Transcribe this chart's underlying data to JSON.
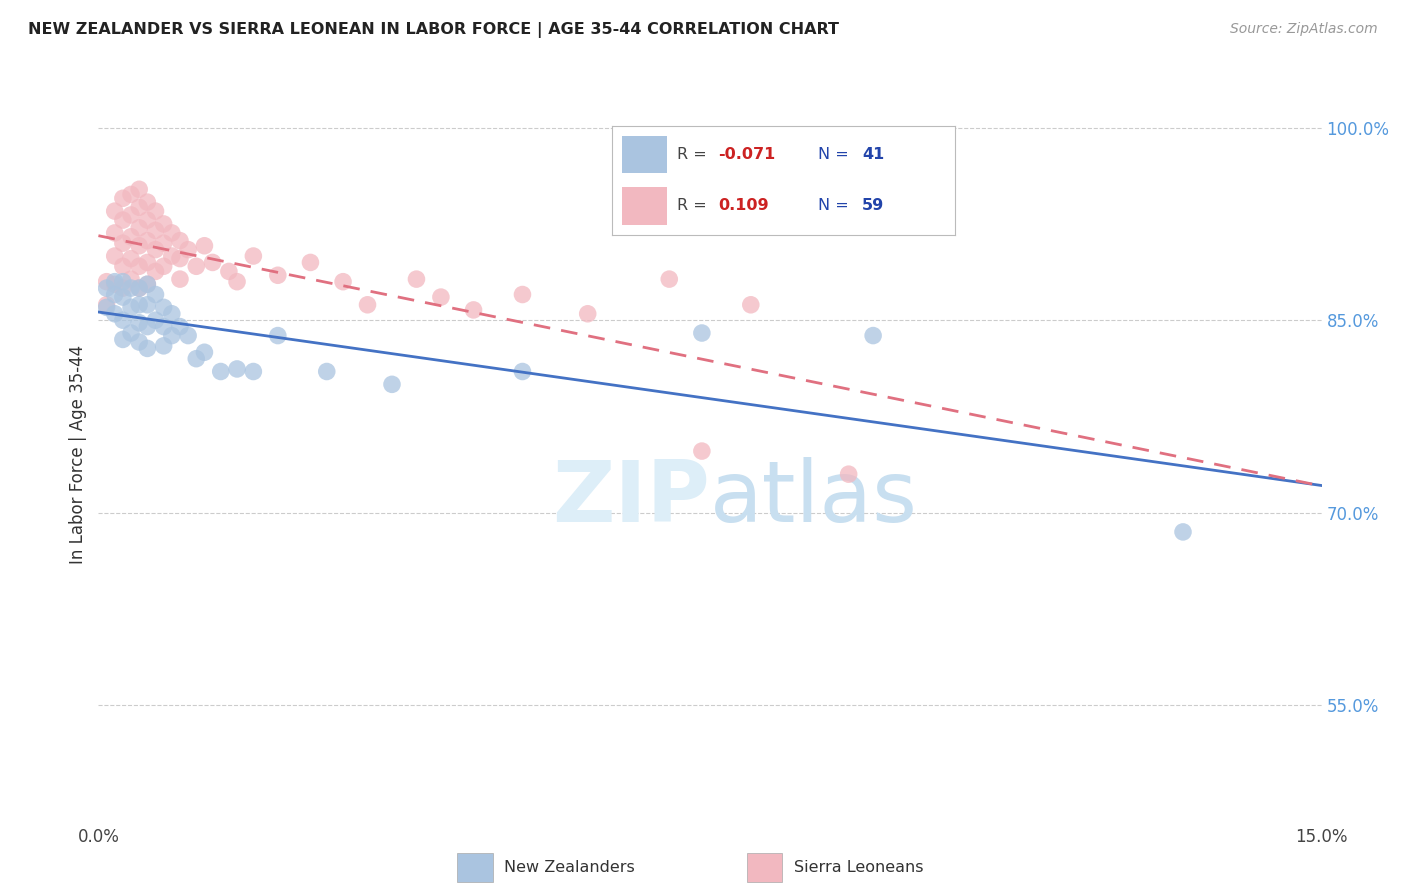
{
  "title": "NEW ZEALANDER VS SIERRA LEONEAN IN LABOR FORCE | AGE 35-44 CORRELATION CHART",
  "source": "Source: ZipAtlas.com",
  "ylabel": "In Labor Force | Age 35-44",
  "xlim": [
    0.0,
    0.15
  ],
  "ylim": [
    0.46,
    1.03
  ],
  "x_ticks": [
    0.0,
    0.03,
    0.06,
    0.09,
    0.12,
    0.15
  ],
  "x_tick_labels": [
    "0.0%",
    "",
    "",
    "",
    "",
    "15.0%"
  ],
  "y_ticks_right": [
    1.0,
    0.85,
    0.7,
    0.55
  ],
  "y_tick_labels_right": [
    "100.0%",
    "85.0%",
    "70.0%",
    "55.0%"
  ],
  "blue_color": "#aac4e0",
  "pink_color": "#f2b8c0",
  "blue_line_color": "#4472c4",
  "pink_line_color": "#e07080",
  "watermark_color": "#ddeef8",
  "background_color": "#ffffff",
  "nz_x": [
    0.001,
    0.001,
    0.002,
    0.002,
    0.002,
    0.003,
    0.003,
    0.003,
    0.003,
    0.004,
    0.004,
    0.004,
    0.005,
    0.005,
    0.005,
    0.005,
    0.006,
    0.006,
    0.006,
    0.006,
    0.007,
    0.007,
    0.008,
    0.008,
    0.008,
    0.009,
    0.009,
    0.01,
    0.011,
    0.012,
    0.013,
    0.015,
    0.017,
    0.019,
    0.022,
    0.028,
    0.036,
    0.052,
    0.074,
    0.095,
    0.133
  ],
  "nz_y": [
    0.875,
    0.86,
    0.88,
    0.87,
    0.855,
    0.88,
    0.868,
    0.85,
    0.835,
    0.875,
    0.86,
    0.84,
    0.875,
    0.862,
    0.848,
    0.833,
    0.878,
    0.862,
    0.845,
    0.828,
    0.87,
    0.85,
    0.86,
    0.845,
    0.83,
    0.855,
    0.838,
    0.845,
    0.838,
    0.82,
    0.825,
    0.81,
    0.812,
    0.81,
    0.838,
    0.81,
    0.8,
    0.81,
    0.84,
    0.838,
    0.685
  ],
  "sl_x": [
    0.001,
    0.001,
    0.002,
    0.002,
    0.002,
    0.002,
    0.003,
    0.003,
    0.003,
    0.003,
    0.003,
    0.004,
    0.004,
    0.004,
    0.004,
    0.004,
    0.005,
    0.005,
    0.005,
    0.005,
    0.005,
    0.005,
    0.006,
    0.006,
    0.006,
    0.006,
    0.006,
    0.007,
    0.007,
    0.007,
    0.007,
    0.008,
    0.008,
    0.008,
    0.009,
    0.009,
    0.01,
    0.01,
    0.01,
    0.011,
    0.012,
    0.013,
    0.014,
    0.016,
    0.017,
    0.019,
    0.022,
    0.026,
    0.03,
    0.033,
    0.039,
    0.042,
    0.046,
    0.052,
    0.06,
    0.07,
    0.074,
    0.08,
    0.092
  ],
  "sl_y": [
    0.88,
    0.862,
    0.935,
    0.918,
    0.9,
    0.878,
    0.945,
    0.928,
    0.91,
    0.892,
    0.875,
    0.948,
    0.932,
    0.915,
    0.898,
    0.882,
    0.952,
    0.938,
    0.922,
    0.908,
    0.892,
    0.875,
    0.942,
    0.928,
    0.912,
    0.895,
    0.878,
    0.935,
    0.92,
    0.905,
    0.888,
    0.925,
    0.91,
    0.892,
    0.918,
    0.9,
    0.912,
    0.898,
    0.882,
    0.905,
    0.892,
    0.908,
    0.895,
    0.888,
    0.88,
    0.9,
    0.885,
    0.895,
    0.88,
    0.862,
    0.882,
    0.868,
    0.858,
    0.87,
    0.855,
    0.882,
    0.748,
    0.862,
    0.73
  ]
}
